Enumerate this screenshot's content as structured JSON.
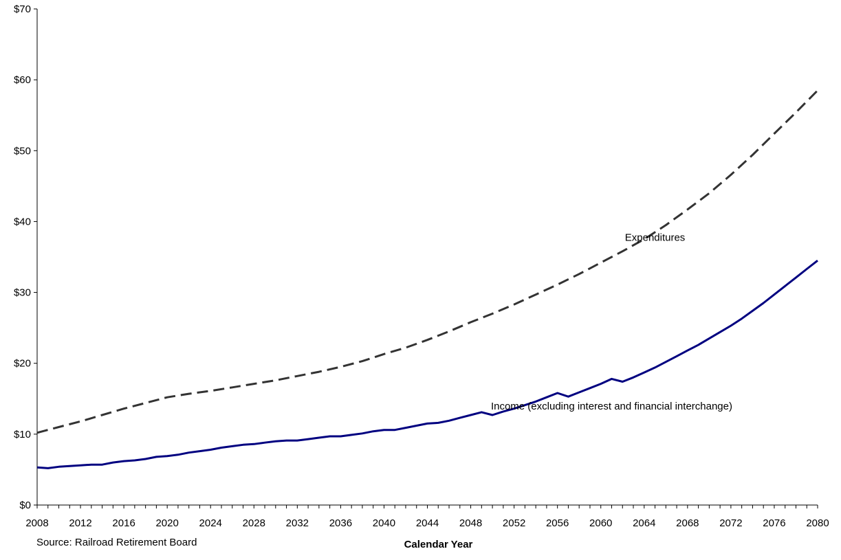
{
  "chart_data": {
    "type": "line",
    "xlabel": "Calendar Year",
    "ylabel": "",
    "xlim": [
      2008,
      2080
    ],
    "ylim": [
      0,
      70
    ],
    "x_ticks": [
      "2008",
      "2012",
      "2016",
      "2020",
      "2024",
      "2028",
      "2032",
      "2036",
      "2040",
      "2044",
      "2048",
      "2052",
      "2056",
      "2060",
      "2064",
      "2068",
      "2072",
      "2076",
      "2080"
    ],
    "y_ticks": [
      "$0",
      "$10",
      "$20",
      "$30",
      "$40",
      "$50",
      "$60",
      "$70"
    ],
    "grid": false,
    "legend": "none",
    "series": [
      {
        "name": "Expenditures",
        "style": "dashed",
        "color": "#333333",
        "points": [
          [
            2008,
            10.2
          ],
          [
            2010,
            11.0
          ],
          [
            2012,
            11.8
          ],
          [
            2014,
            12.7
          ],
          [
            2016,
            13.6
          ],
          [
            2018,
            14.4
          ],
          [
            2020,
            15.2
          ],
          [
            2022,
            15.7
          ],
          [
            2024,
            16.1
          ],
          [
            2026,
            16.6
          ],
          [
            2028,
            17.1
          ],
          [
            2030,
            17.6
          ],
          [
            2032,
            18.2
          ],
          [
            2034,
            18.8
          ],
          [
            2036,
            19.5
          ],
          [
            2038,
            20.3
          ],
          [
            2040,
            21.3
          ],
          [
            2042,
            22.2
          ],
          [
            2044,
            23.3
          ],
          [
            2046,
            24.5
          ],
          [
            2048,
            25.8
          ],
          [
            2050,
            27.0
          ],
          [
            2052,
            28.3
          ],
          [
            2054,
            29.7
          ],
          [
            2056,
            31.1
          ],
          [
            2058,
            32.6
          ],
          [
            2060,
            34.2
          ],
          [
            2062,
            35.8
          ],
          [
            2064,
            37.5
          ],
          [
            2066,
            39.5
          ],
          [
            2068,
            41.7
          ],
          [
            2070,
            44.0
          ],
          [
            2072,
            46.6
          ],
          [
            2074,
            49.4
          ],
          [
            2076,
            52.4
          ],
          [
            2078,
            55.4
          ],
          [
            2080,
            58.5
          ]
        ]
      },
      {
        "name": "Income (excluding interest and financial interchange)",
        "style": "solid",
        "color": "#000080",
        "points": [
          [
            2008,
            5.3
          ],
          [
            2009,
            5.2
          ],
          [
            2010,
            5.4
          ],
          [
            2011,
            5.5
          ],
          [
            2012,
            5.6
          ],
          [
            2013,
            5.7
          ],
          [
            2014,
            5.7
          ],
          [
            2015,
            6.0
          ],
          [
            2016,
            6.2
          ],
          [
            2017,
            6.3
          ],
          [
            2018,
            6.5
          ],
          [
            2019,
            6.8
          ],
          [
            2020,
            6.9
          ],
          [
            2021,
            7.1
          ],
          [
            2022,
            7.4
          ],
          [
            2023,
            7.6
          ],
          [
            2024,
            7.8
          ],
          [
            2025,
            8.1
          ],
          [
            2026,
            8.3
          ],
          [
            2027,
            8.5
          ],
          [
            2028,
            8.6
          ],
          [
            2029,
            8.8
          ],
          [
            2030,
            9.0
          ],
          [
            2031,
            9.1
          ],
          [
            2032,
            9.1
          ],
          [
            2033,
            9.3
          ],
          [
            2034,
            9.5
          ],
          [
            2035,
            9.7
          ],
          [
            2036,
            9.7
          ],
          [
            2037,
            9.9
          ],
          [
            2038,
            10.1
          ],
          [
            2039,
            10.4
          ],
          [
            2040,
            10.6
          ],
          [
            2041,
            10.6
          ],
          [
            2042,
            10.9
          ],
          [
            2043,
            11.2
          ],
          [
            2044,
            11.5
          ],
          [
            2045,
            11.6
          ],
          [
            2046,
            11.9
          ],
          [
            2047,
            12.3
          ],
          [
            2048,
            12.7
          ],
          [
            2049,
            13.1
          ],
          [
            2050,
            12.7
          ],
          [
            2051,
            13.2
          ],
          [
            2052,
            13.6
          ],
          [
            2053,
            14.1
          ],
          [
            2054,
            14.6
          ],
          [
            2055,
            15.2
          ],
          [
            2056,
            15.8
          ],
          [
            2057,
            15.3
          ],
          [
            2058,
            15.9
          ],
          [
            2059,
            16.5
          ],
          [
            2060,
            17.1
          ],
          [
            2061,
            17.8
          ],
          [
            2062,
            17.4
          ],
          [
            2063,
            18.0
          ],
          [
            2064,
            18.7
          ],
          [
            2065,
            19.4
          ],
          [
            2066,
            20.2
          ],
          [
            2067,
            21.0
          ],
          [
            2068,
            21.8
          ],
          [
            2069,
            22.6
          ],
          [
            2070,
            23.5
          ],
          [
            2071,
            24.4
          ],
          [
            2072,
            25.3
          ],
          [
            2073,
            26.3
          ],
          [
            2074,
            27.4
          ],
          [
            2075,
            28.5
          ],
          [
            2076,
            29.7
          ],
          [
            2077,
            30.9
          ],
          [
            2078,
            32.1
          ],
          [
            2079,
            33.3
          ],
          [
            2080,
            34.5
          ]
        ]
      }
    ],
    "annotations": [
      {
        "text": "Expenditures",
        "x": 2065,
        "y": 37.3
      },
      {
        "text": "Income (excluding interest and financial interchange)",
        "x": 2061,
        "y": 13.5
      }
    ]
  },
  "source_text": "Source: Railroad Retirement Board"
}
